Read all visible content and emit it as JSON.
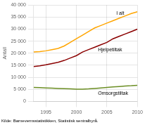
{
  "chart_data": {
    "type": "line",
    "ylabel": "Antall",
    "x": [
      1993,
      1994,
      1995,
      1996,
      1997,
      1998,
      1999,
      2000,
      2001,
      2002,
      2003,
      2004,
      2005,
      2006,
      2007,
      2008,
      2009,
      2010
    ],
    "series": [
      {
        "name": "I alt",
        "color": "#FFA500",
        "values": [
          20500,
          20700,
          21000,
          21500,
          22000,
          23000,
          24500,
          26000,
          27500,
          29000,
          30500,
          31500,
          32500,
          33500,
          34500,
          35500,
          36500,
          37200
        ]
      },
      {
        "name": "Hjelpetiltak",
        "color": "#8B0000",
        "values": [
          14500,
          14800,
          15200,
          15700,
          16200,
          17000,
          18000,
          19000,
          20500,
          21500,
          22500,
          23500,
          24500,
          26000,
          27000,
          28000,
          29000,
          30000
        ]
      },
      {
        "name": "Omsorgstiltak",
        "color": "#6B8E23",
        "values": [
          5800,
          5700,
          5600,
          5500,
          5400,
          5300,
          5200,
          5100,
          5100,
          5200,
          5400,
          5600,
          5800,
          6000,
          6200,
          6400,
          6500,
          6700
        ]
      }
    ],
    "xlim": [
      1993,
      2010
    ],
    "xticks": [
      1995,
      2000,
      2005,
      2010
    ],
    "ylim": [
      0,
      40000
    ],
    "yticks": [
      0,
      {
        "value": 5000,
        "label": "5 000"
      },
      {
        "value": 10000,
        "label": "10 000"
      },
      {
        "value": 15000,
        "label": "15 000"
      },
      {
        "value": 20000,
        "label": "20 000"
      },
      {
        "value": 25000,
        "label": "25 000"
      },
      {
        "value": 30000,
        "label": "30 000"
      },
      {
        "value": 35000,
        "label": "35 000"
      },
      {
        "value": 40000,
        "label": "40 000"
      }
    ],
    "grid": true,
    "annotations": [
      "Kilde: Barnevernsstatistikken, Statistisk sentralbyrå."
    ]
  }
}
